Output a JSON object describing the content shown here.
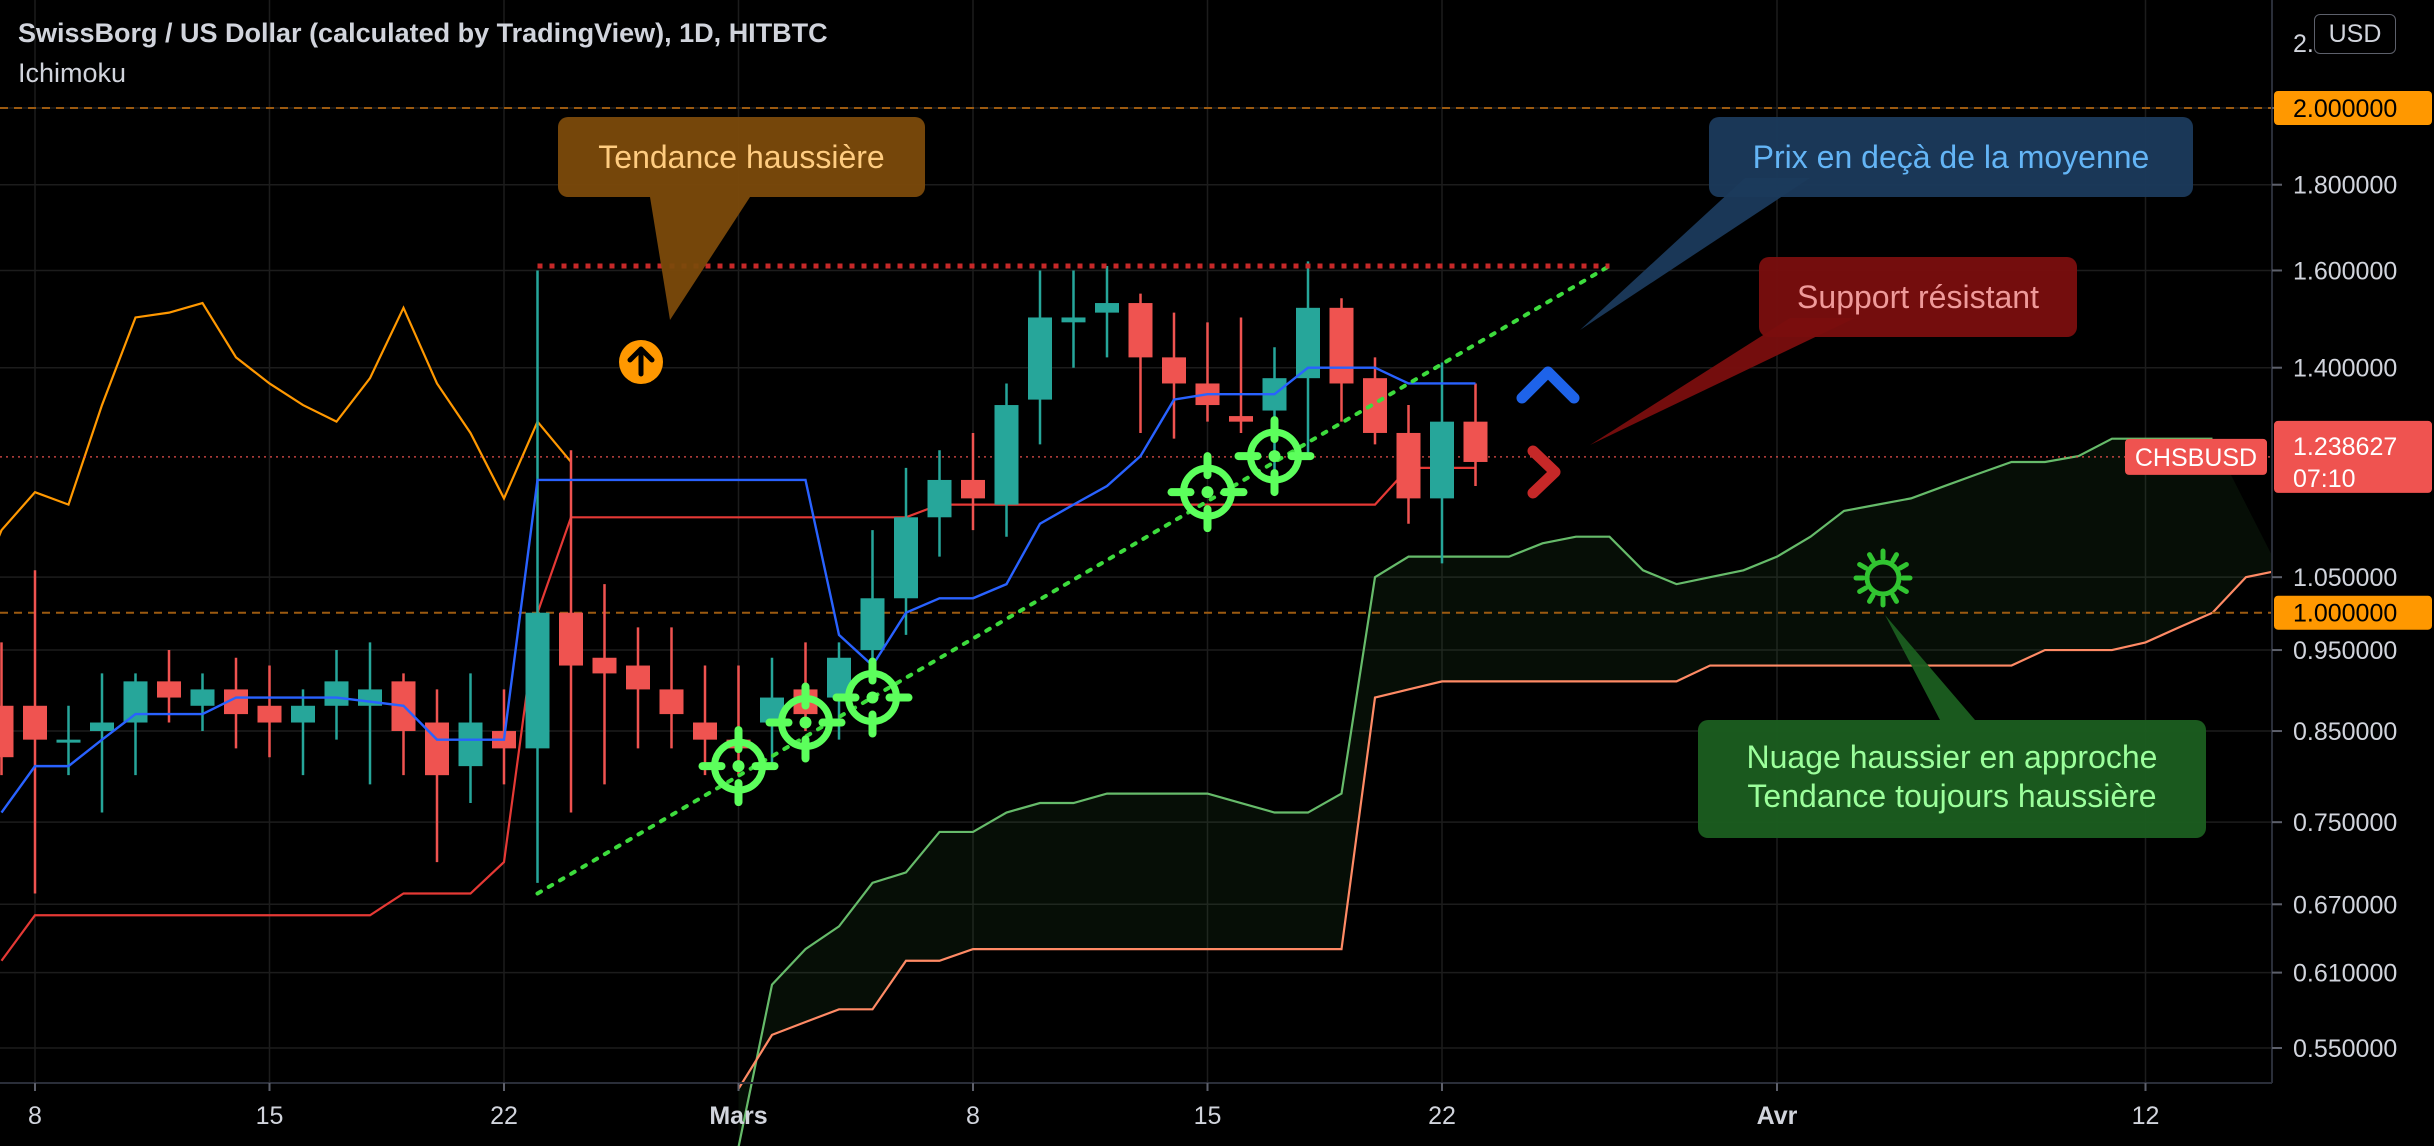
{
  "header": {
    "title": "SwissBorg / US Dollar (calculated by TradingView), 1D, HITBTC",
    "indicator": "Ichimoku"
  },
  "currency_button": "USD",
  "colors": {
    "up": "#26a69a",
    "down": "#ef5350",
    "tenkan": "#2962ff",
    "kijun": "#e53935",
    "chikou": "#ff9800",
    "span_a": "#66bb6a",
    "span_b": "#ff8a65",
    "background": "#000000",
    "annotation_green": "#5cff5c",
    "resistance_line": "#c62828"
  },
  "chart_data": {
    "type": "candlestick",
    "symbol": "CHSBUSD",
    "timeframe": "1D",
    "exchange": "HITBTC",
    "y_axis": {
      "ticks": [
        "2.000000",
        "1.800000",
        "1.600000",
        "1.400000",
        "1.050000",
        "0.950000",
        "0.850000",
        "0.750000",
        "0.670000",
        "0.610000",
        "0.550000"
      ],
      "top_partial_label": "2.",
      "range": [
        0.5,
        2.2
      ]
    },
    "x_axis": {
      "labels": [
        {
          "text": "8",
          "date": "2021-02-08"
        },
        {
          "text": "15",
          "date": "2021-02-15"
        },
        {
          "text": "22",
          "date": "2021-02-22"
        },
        {
          "text": "Mars",
          "date": "2021-03-01"
        },
        {
          "text": "8",
          "date": "2021-03-08"
        },
        {
          "text": "15",
          "date": "2021-03-15"
        },
        {
          "text": "22",
          "date": "2021-03-22"
        },
        {
          "text": "Avr",
          "date": "2021-04-01"
        },
        {
          "text": "12",
          "date": "2021-04-12"
        }
      ]
    },
    "horizontal_levels": [
      {
        "value": 2.0,
        "label": "2.000000",
        "color": "#ff9800"
      },
      {
        "value": 1.0,
        "label": "1.000000",
        "color": "#ff9800"
      }
    ],
    "last_price": {
      "symbol": "CHSBUSD",
      "value": "1.238627",
      "countdown": "07:10",
      "value_num": 1.238627
    },
    "candles": [
      {
        "date": "2021-02-07",
        "o": 0.88,
        "h": 0.96,
        "l": 0.8,
        "c": 0.82
      },
      {
        "date": "2021-02-08",
        "o": 0.88,
        "h": 1.06,
        "l": 0.68,
        "c": 0.84
      },
      {
        "date": "2021-02-09",
        "o": 0.84,
        "h": 0.88,
        "l": 0.8,
        "c": 0.84
      },
      {
        "date": "2021-02-10",
        "o": 0.85,
        "h": 0.92,
        "l": 0.76,
        "c": 0.86
      },
      {
        "date": "2021-02-11",
        "o": 0.86,
        "h": 0.92,
        "l": 0.8,
        "c": 0.91
      },
      {
        "date": "2021-02-12",
        "o": 0.91,
        "h": 0.95,
        "l": 0.86,
        "c": 0.89
      },
      {
        "date": "2021-02-13",
        "o": 0.88,
        "h": 0.92,
        "l": 0.85,
        "c": 0.9
      },
      {
        "date": "2021-02-14",
        "o": 0.9,
        "h": 0.94,
        "l": 0.83,
        "c": 0.87
      },
      {
        "date": "2021-02-15",
        "o": 0.88,
        "h": 0.93,
        "l": 0.82,
        "c": 0.86
      },
      {
        "date": "2021-02-16",
        "o": 0.86,
        "h": 0.9,
        "l": 0.8,
        "c": 0.88
      },
      {
        "date": "2021-02-17",
        "o": 0.88,
        "h": 0.95,
        "l": 0.84,
        "c": 0.91
      },
      {
        "date": "2021-02-18",
        "o": 0.88,
        "h": 0.96,
        "l": 0.79,
        "c": 0.9
      },
      {
        "date": "2021-02-19",
        "o": 0.91,
        "h": 0.92,
        "l": 0.8,
        "c": 0.85
      },
      {
        "date": "2021-02-20",
        "o": 0.86,
        "h": 0.9,
        "l": 0.71,
        "c": 0.8
      },
      {
        "date": "2021-02-21",
        "o": 0.81,
        "h": 0.92,
        "l": 0.77,
        "c": 0.86
      },
      {
        "date": "2021-02-22",
        "o": 0.85,
        "h": 0.9,
        "l": 0.79,
        "c": 0.83
      },
      {
        "date": "2021-02-23",
        "o": 0.83,
        "h": 1.6,
        "l": 0.69,
        "c": 1.0
      },
      {
        "date": "2021-02-24",
        "o": 1.0,
        "h": 1.25,
        "l": 0.76,
        "c": 0.93
      },
      {
        "date": "2021-02-25",
        "o": 0.94,
        "h": 1.04,
        "l": 0.79,
        "c": 0.92
      },
      {
        "date": "2021-02-26",
        "o": 0.93,
        "h": 0.98,
        "l": 0.83,
        "c": 0.9
      },
      {
        "date": "2021-02-27",
        "o": 0.9,
        "h": 0.98,
        "l": 0.83,
        "c": 0.87
      },
      {
        "date": "2021-02-28",
        "o": 0.86,
        "h": 0.93,
        "l": 0.8,
        "c": 0.84
      },
      {
        "date": "2021-03-01",
        "o": 0.84,
        "h": 0.93,
        "l": 0.8,
        "c": 0.83
      },
      {
        "date": "2021-03-02",
        "o": 0.86,
        "h": 0.94,
        "l": 0.81,
        "c": 0.89
      },
      {
        "date": "2021-03-03",
        "o": 0.9,
        "h": 0.96,
        "l": 0.85,
        "c": 0.87
      },
      {
        "date": "2021-03-04",
        "o": 0.89,
        "h": 0.96,
        "l": 0.84,
        "c": 0.94
      },
      {
        "date": "2021-03-05",
        "o": 0.95,
        "h": 1.12,
        "l": 0.94,
        "c": 1.02
      },
      {
        "date": "2021-03-06",
        "o": 1.02,
        "h": 1.22,
        "l": 0.97,
        "c": 1.14
      },
      {
        "date": "2021-03-07",
        "o": 1.14,
        "h": 1.25,
        "l": 1.08,
        "c": 1.2
      },
      {
        "date": "2021-03-08",
        "o": 1.2,
        "h": 1.28,
        "l": 1.12,
        "c": 1.17
      },
      {
        "date": "2021-03-09",
        "o": 1.16,
        "h": 1.37,
        "l": 1.11,
        "c": 1.33
      },
      {
        "date": "2021-03-10",
        "o": 1.34,
        "h": 1.6,
        "l": 1.26,
        "c": 1.5
      },
      {
        "date": "2021-03-11",
        "o": 1.49,
        "h": 1.6,
        "l": 1.4,
        "c": 1.5
      },
      {
        "date": "2021-03-12",
        "o": 1.51,
        "h": 1.61,
        "l": 1.42,
        "c": 1.53
      },
      {
        "date": "2021-03-13",
        "o": 1.53,
        "h": 1.55,
        "l": 1.28,
        "c": 1.42
      },
      {
        "date": "2021-03-14",
        "o": 1.42,
        "h": 1.51,
        "l": 1.27,
        "c": 1.37
      },
      {
        "date": "2021-03-15",
        "o": 1.37,
        "h": 1.49,
        "l": 1.3,
        "c": 1.33
      },
      {
        "date": "2021-03-16",
        "o": 1.31,
        "h": 1.5,
        "l": 1.28,
        "c": 1.3
      },
      {
        "date": "2021-03-17",
        "o": 1.32,
        "h": 1.44,
        "l": 1.2,
        "c": 1.38
      },
      {
        "date": "2021-03-18",
        "o": 1.38,
        "h": 1.62,
        "l": 1.24,
        "c": 1.52
      },
      {
        "date": "2021-03-19",
        "o": 1.52,
        "h": 1.54,
        "l": 1.3,
        "c": 1.37
      },
      {
        "date": "2021-03-20",
        "o": 1.38,
        "h": 1.42,
        "l": 1.26,
        "c": 1.28
      },
      {
        "date": "2021-03-21",
        "o": 1.28,
        "h": 1.33,
        "l": 1.13,
        "c": 1.17
      },
      {
        "date": "2021-03-22",
        "o": 1.17,
        "h": 1.41,
        "l": 1.07,
        "c": 1.3
      },
      {
        "date": "2021-03-23",
        "o": 1.3,
        "h": 1.37,
        "l": 1.19,
        "c": 1.23
      }
    ],
    "ichimoku": {
      "tenkan": [
        {
          "date": "2021-02-07",
          "v": 0.76
        },
        {
          "date": "2021-02-08",
          "v": 0.81
        },
        {
          "date": "2021-02-09",
          "v": 0.81
        },
        {
          "date": "2021-02-10",
          "v": 0.84
        },
        {
          "date": "2021-02-11",
          "v": 0.87
        },
        {
          "date": "2021-02-13",
          "v": 0.87
        },
        {
          "date": "2021-02-14",
          "v": 0.89
        },
        {
          "date": "2021-02-16",
          "v": 0.89
        },
        {
          "date": "2021-02-17",
          "v": 0.89
        },
        {
          "date": "2021-02-19",
          "v": 0.88
        },
        {
          "date": "2021-02-20",
          "v": 0.84
        },
        {
          "date": "2021-02-22",
          "v": 0.84
        },
        {
          "date": "2021-02-23",
          "v": 1.2
        },
        {
          "date": "2021-03-03",
          "v": 1.2
        },
        {
          "date": "2021-03-04",
          "v": 0.97
        },
        {
          "date": "2021-03-05",
          "v": 0.93
        },
        {
          "date": "2021-03-06",
          "v": 1.0
        },
        {
          "date": "2021-03-07",
          "v": 1.02
        },
        {
          "date": "2021-03-08",
          "v": 1.02
        },
        {
          "date": "2021-03-09",
          "v": 1.04
        },
        {
          "date": "2021-03-10",
          "v": 1.13
        },
        {
          "date": "2021-03-11",
          "v": 1.16
        },
        {
          "date": "2021-03-12",
          "v": 1.19
        },
        {
          "date": "2021-03-13",
          "v": 1.24
        },
        {
          "date": "2021-03-14",
          "v": 1.34
        },
        {
          "date": "2021-03-15",
          "v": 1.35
        },
        {
          "date": "2021-03-17",
          "v": 1.35
        },
        {
          "date": "2021-03-18",
          "v": 1.4
        },
        {
          "date": "2021-03-20",
          "v": 1.4
        },
        {
          "date": "2021-03-21",
          "v": 1.37
        },
        {
          "date": "2021-03-22",
          "v": 1.37
        },
        {
          "date": "2021-03-23",
          "v": 1.37
        }
      ],
      "kijun": [
        {
          "date": "2021-02-07",
          "v": 0.62
        },
        {
          "date": "2021-02-08",
          "v": 0.66
        },
        {
          "date": "2021-02-15",
          "v": 0.66
        },
        {
          "date": "2021-02-18",
          "v": 0.66
        },
        {
          "date": "2021-02-19",
          "v": 0.68
        },
        {
          "date": "2021-02-21",
          "v": 0.68
        },
        {
          "date": "2021-02-22",
          "v": 0.71
        },
        {
          "date": "2021-02-23",
          "v": 1.0
        },
        {
          "date": "2021-02-24",
          "v": 1.14
        },
        {
          "date": "2021-02-25",
          "v": 1.14
        },
        {
          "date": "2021-02-28",
          "v": 1.14
        },
        {
          "date": "2021-03-01",
          "v": 1.14
        },
        {
          "date": "2021-03-04",
          "v": 1.14
        },
        {
          "date": "2021-03-06",
          "v": 1.14
        },
        {
          "date": "2021-03-07",
          "v": 1.16
        },
        {
          "date": "2021-03-09",
          "v": 1.16
        },
        {
          "date": "2021-03-15",
          "v": 1.16
        },
        {
          "date": "2021-03-16",
          "v": 1.16
        },
        {
          "date": "2021-03-18",
          "v": 1.16
        },
        {
          "date": "2021-03-20",
          "v": 1.16
        },
        {
          "date": "2021-03-21",
          "v": 1.22
        },
        {
          "date": "2021-03-23",
          "v": 1.22
        }
      ],
      "chikou": [
        {
          "date": "2021-02-06",
          "v": 1.0
        },
        {
          "date": "2021-02-07",
          "v": 1.12
        },
        {
          "date": "2021-02-08",
          "v": 1.18
        },
        {
          "date": "2021-02-09",
          "v": 1.16
        },
        {
          "date": "2021-02-10",
          "v": 1.33
        },
        {
          "date": "2021-02-11",
          "v": 1.5
        },
        {
          "date": "2021-02-12",
          "v": 1.51
        },
        {
          "date": "2021-02-13",
          "v": 1.53
        },
        {
          "date": "2021-02-14",
          "v": 1.42
        },
        {
          "date": "2021-02-15",
          "v": 1.37
        },
        {
          "date": "2021-02-16",
          "v": 1.33
        },
        {
          "date": "2021-02-17",
          "v": 1.3
        },
        {
          "date": "2021-02-18",
          "v": 1.38
        },
        {
          "date": "2021-02-19",
          "v": 1.52
        },
        {
          "date": "2021-02-20",
          "v": 1.37
        },
        {
          "date": "2021-02-21",
          "v": 1.28
        },
        {
          "date": "2021-02-22",
          "v": 1.17
        },
        {
          "date": "2021-02-23",
          "v": 1.3
        },
        {
          "date": "2021-02-24",
          "v": 1.23
        }
      ],
      "span_a": [
        {
          "date": "2021-03-01",
          "v": 0.48
        },
        {
          "date": "2021-03-02",
          "v": 0.6
        },
        {
          "date": "2021-03-03",
          "v": 0.63
        },
        {
          "date": "2021-03-04",
          "v": 0.65
        },
        {
          "date": "2021-03-05",
          "v": 0.69
        },
        {
          "date": "2021-03-06",
          "v": 0.7
        },
        {
          "date": "2021-03-07",
          "v": 0.74
        },
        {
          "date": "2021-03-08",
          "v": 0.74
        },
        {
          "date": "2021-03-09",
          "v": 0.76
        },
        {
          "date": "2021-03-10",
          "v": 0.77
        },
        {
          "date": "2021-03-11",
          "v": 0.77
        },
        {
          "date": "2021-03-12",
          "v": 0.78
        },
        {
          "date": "2021-03-15",
          "v": 0.78
        },
        {
          "date": "2021-03-16",
          "v": 0.77
        },
        {
          "date": "2021-03-17",
          "v": 0.76
        },
        {
          "date": "2021-03-18",
          "v": 0.76
        },
        {
          "date": "2021-03-19",
          "v": 0.78
        },
        {
          "date": "2021-03-20",
          "v": 1.05
        },
        {
          "date": "2021-03-21",
          "v": 1.08
        },
        {
          "date": "2021-03-22",
          "v": 1.08
        },
        {
          "date": "2021-03-23",
          "v": 1.08
        },
        {
          "date": "2021-03-24",
          "v": 1.08
        },
        {
          "date": "2021-03-25",
          "v": 1.1
        },
        {
          "date": "2021-03-26",
          "v": 1.11
        },
        {
          "date": "2021-03-27",
          "v": 1.11
        },
        {
          "date": "2021-03-28",
          "v": 1.06
        },
        {
          "date": "2021-03-29",
          "v": 1.04
        },
        {
          "date": "2021-03-30",
          "v": 1.05
        },
        {
          "date": "2021-03-31",
          "v": 1.06
        },
        {
          "date": "2021-04-01",
          "v": 1.08
        },
        {
          "date": "2021-04-02",
          "v": 1.11
        },
        {
          "date": "2021-04-03",
          "v": 1.15
        },
        {
          "date": "2021-04-04",
          "v": 1.16
        },
        {
          "date": "2021-04-05",
          "v": 1.17
        },
        {
          "date": "2021-04-06",
          "v": 1.19
        },
        {
          "date": "2021-04-07",
          "v": 1.21
        },
        {
          "date": "2021-04-08",
          "v": 1.23
        },
        {
          "date": "2021-04-09",
          "v": 1.23
        },
        {
          "date": "2021-04-10",
          "v": 1.24
        },
        {
          "date": "2021-04-11",
          "v": 1.27
        },
        {
          "date": "2021-04-12",
          "v": 1.27
        },
        {
          "date": "2021-04-13",
          "v": 1.27
        },
        {
          "date": "2021-04-14",
          "v": 1.27
        }
      ],
      "span_b": [
        {
          "date": "2021-03-01",
          "v": 0.52
        },
        {
          "date": "2021-03-02",
          "v": 0.56
        },
        {
          "date": "2021-03-03",
          "v": 0.57
        },
        {
          "date": "2021-03-04",
          "v": 0.58
        },
        {
          "date": "2021-03-05",
          "v": 0.58
        },
        {
          "date": "2021-03-06",
          "v": 0.62
        },
        {
          "date": "2021-03-07",
          "v": 0.62
        },
        {
          "date": "2021-03-08",
          "v": 0.63
        },
        {
          "date": "2021-03-19",
          "v": 0.63
        },
        {
          "date": "2021-03-20",
          "v": 0.89
        },
        {
          "date": "2021-03-21",
          "v": 0.9
        },
        {
          "date": "2021-03-22",
          "v": 0.91
        },
        {
          "date": "2021-03-29",
          "v": 0.91
        },
        {
          "date": "2021-03-30",
          "v": 0.93
        },
        {
          "date": "2021-04-01",
          "v": 0.93
        },
        {
          "date": "2021-04-07",
          "v": 0.93
        },
        {
          "date": "2021-04-08",
          "v": 0.93
        },
        {
          "date": "2021-04-09",
          "v": 0.95
        },
        {
          "date": "2021-04-10",
          "v": 0.95
        },
        {
          "date": "2021-04-11",
          "v": 0.95
        },
        {
          "date": "2021-04-12",
          "v": 0.96
        },
        {
          "date": "2021-04-13",
          "v": 0.98
        },
        {
          "date": "2021-04-14",
          "v": 1.0
        },
        {
          "date": "2021-04-15",
          "v": 1.05
        },
        {
          "date": "2021-04-16",
          "v": 1.06
        }
      ]
    },
    "trendline": {
      "from": {
        "date": "2021-02-23",
        "v": 0.68
      },
      "to": {
        "date": "2021-03-27",
        "v": 1.61
      }
    },
    "resistance_line": {
      "from_date": "2021-02-23",
      "to_date": "2021-03-27",
      "v": 1.61
    },
    "annotations": [
      {
        "text": "Tendance haussière",
        "bg": "#7b4a0b",
        "fg": "#ffcc80"
      },
      {
        "text": "Prix en deçà de la moyenne",
        "bg": "#1b3a5c",
        "fg": "#64b5f6"
      },
      {
        "text": "Support résistant",
        "bg": "#7a0e0e",
        "fg": "#ef9a9a"
      },
      {
        "text": "Nuage haussier en approche",
        "text2": "Tendance toujours haussière",
        "bg": "#1b5e20",
        "fg": "#9cff9c"
      }
    ],
    "crosshair_markers": [
      {
        "date": "2021-03-01",
        "v": 0.81
      },
      {
        "date": "2021-03-03",
        "v": 0.86
      },
      {
        "date": "2021-03-05",
        "v": 0.89
      },
      {
        "date": "2021-03-15",
        "v": 1.18
      },
      {
        "date": "2021-03-17",
        "v": 1.24
      }
    ],
    "icons": [
      "up-arrow-circle-icon",
      "chevron-up-icon",
      "chevron-right-icon",
      "sun-icon",
      "crosshair-icon"
    ]
  }
}
